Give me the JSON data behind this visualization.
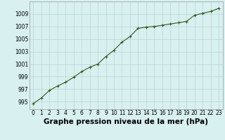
{
  "x": [
    0,
    1,
    2,
    3,
    4,
    5,
    6,
    7,
    8,
    9,
    10,
    11,
    12,
    13,
    14,
    15,
    16,
    17,
    18,
    19,
    20,
    21,
    22,
    23
  ],
  "y": [
    994.7,
    995.6,
    996.8,
    997.5,
    998.1,
    998.9,
    999.8,
    1000.5,
    1001.0,
    1002.2,
    1003.2,
    1004.5,
    1005.4,
    1006.7,
    1006.9,
    1007.0,
    1007.2,
    1007.4,
    1007.6,
    1007.8,
    1008.8,
    1009.1,
    1009.4,
    1009.9
  ],
  "line_color": "#2d5a1b",
  "marker": "+",
  "marker_size": 3,
  "bg_color": "#d8f0f0",
  "grid_color": "#b8d4d4",
  "xlabel": "Graphe pression niveau de la mer (hPa)",
  "xlabel_fontsize": 7.5,
  "yticks": [
    995,
    997,
    999,
    1001,
    1003,
    1005,
    1007,
    1009
  ],
  "xticks": [
    0,
    1,
    2,
    3,
    4,
    5,
    6,
    7,
    8,
    9,
    10,
    11,
    12,
    13,
    14,
    15,
    16,
    17,
    18,
    19,
    20,
    21,
    22,
    23
  ],
  "ylim": [
    993.8,
    1011.0
  ],
  "xlim": [
    -0.5,
    23.5
  ],
  "tick_fontsize": 5.5,
  "line_width": 0.8,
  "figwidth": 3.2,
  "figheight": 2.0,
  "dpi": 100
}
